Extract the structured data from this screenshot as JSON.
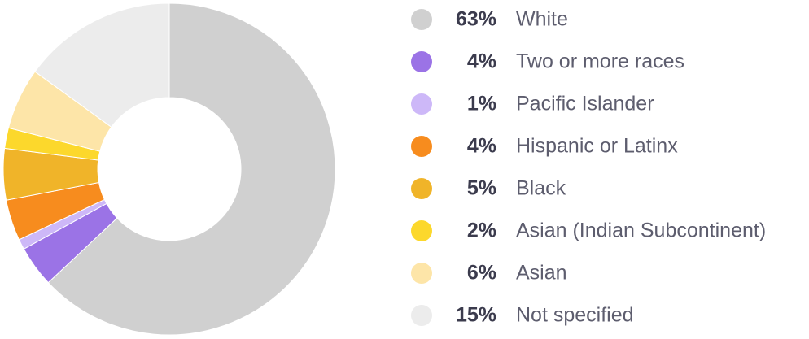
{
  "chart_data": {
    "type": "pie",
    "categories": [
      "White",
      "Two or more races",
      "Pacific Islander",
      "Hispanic or Latinx",
      "Black",
      "Asian (Indian Subcontinent)",
      "Asian",
      "Not specified"
    ],
    "values": [
      63,
      4,
      1,
      4,
      5,
      2,
      6,
      15
    ],
    "value_labels": [
      "63%",
      "4%",
      "1%",
      "4%",
      "5%",
      "2%",
      "6%",
      "15%"
    ],
    "colors": [
      "#d0d0d0",
      "#9b73e6",
      "#cdb8f8",
      "#f78c1e",
      "#f0b429",
      "#fcd82c",
      "#fde5a8",
      "#ececec"
    ]
  }
}
